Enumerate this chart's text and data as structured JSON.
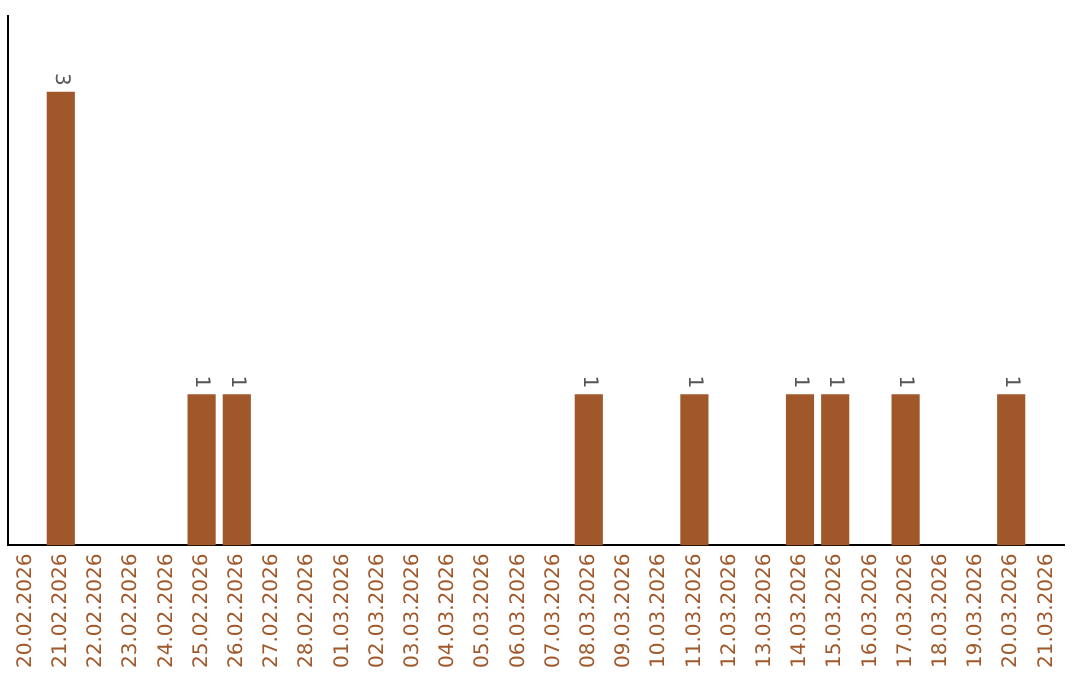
{
  "chart_data": {
    "type": "bar",
    "categories": [
      "20.02.2026",
      "21.02.2026",
      "22.02.2026",
      "23.02.2026",
      "24.02.2026",
      "25.02.2026",
      "26.02.2026",
      "27.02.2026",
      "28.02.2026",
      "01.03.2026",
      "02.03.2026",
      "03.03.2026",
      "04.03.2026",
      "05.03.2026",
      "06.03.2026",
      "07.03.2026",
      "08.03.2026",
      "09.03.2026",
      "10.03.2026",
      "11.03.2026",
      "12.03.2026",
      "13.03.2026",
      "14.03.2026",
      "15.03.2026",
      "16.03.2026",
      "17.03.2026",
      "18.03.2026",
      "19.03.2026",
      "20.03.2026",
      "21.03.2026"
    ],
    "values": [
      0,
      3,
      0,
      0,
      0,
      1,
      1,
      0,
      0,
      0,
      0,
      0,
      0,
      0,
      0,
      0,
      1,
      0,
      0,
      1,
      0,
      0,
      1,
      1,
      0,
      1,
      0,
      0,
      1,
      0
    ],
    "value_labels": [
      null,
      "3",
      null,
      null,
      null,
      "1",
      "1",
      null,
      null,
      null,
      null,
      null,
      null,
      null,
      null,
      null,
      "1",
      null,
      null,
      "1",
      null,
      null,
      "1",
      "1",
      null,
      "1",
      null,
      null,
      "1",
      null
    ],
    "color": "#a0582a",
    "grid": false,
    "legend": false,
    "tick_labels": "x"
  }
}
